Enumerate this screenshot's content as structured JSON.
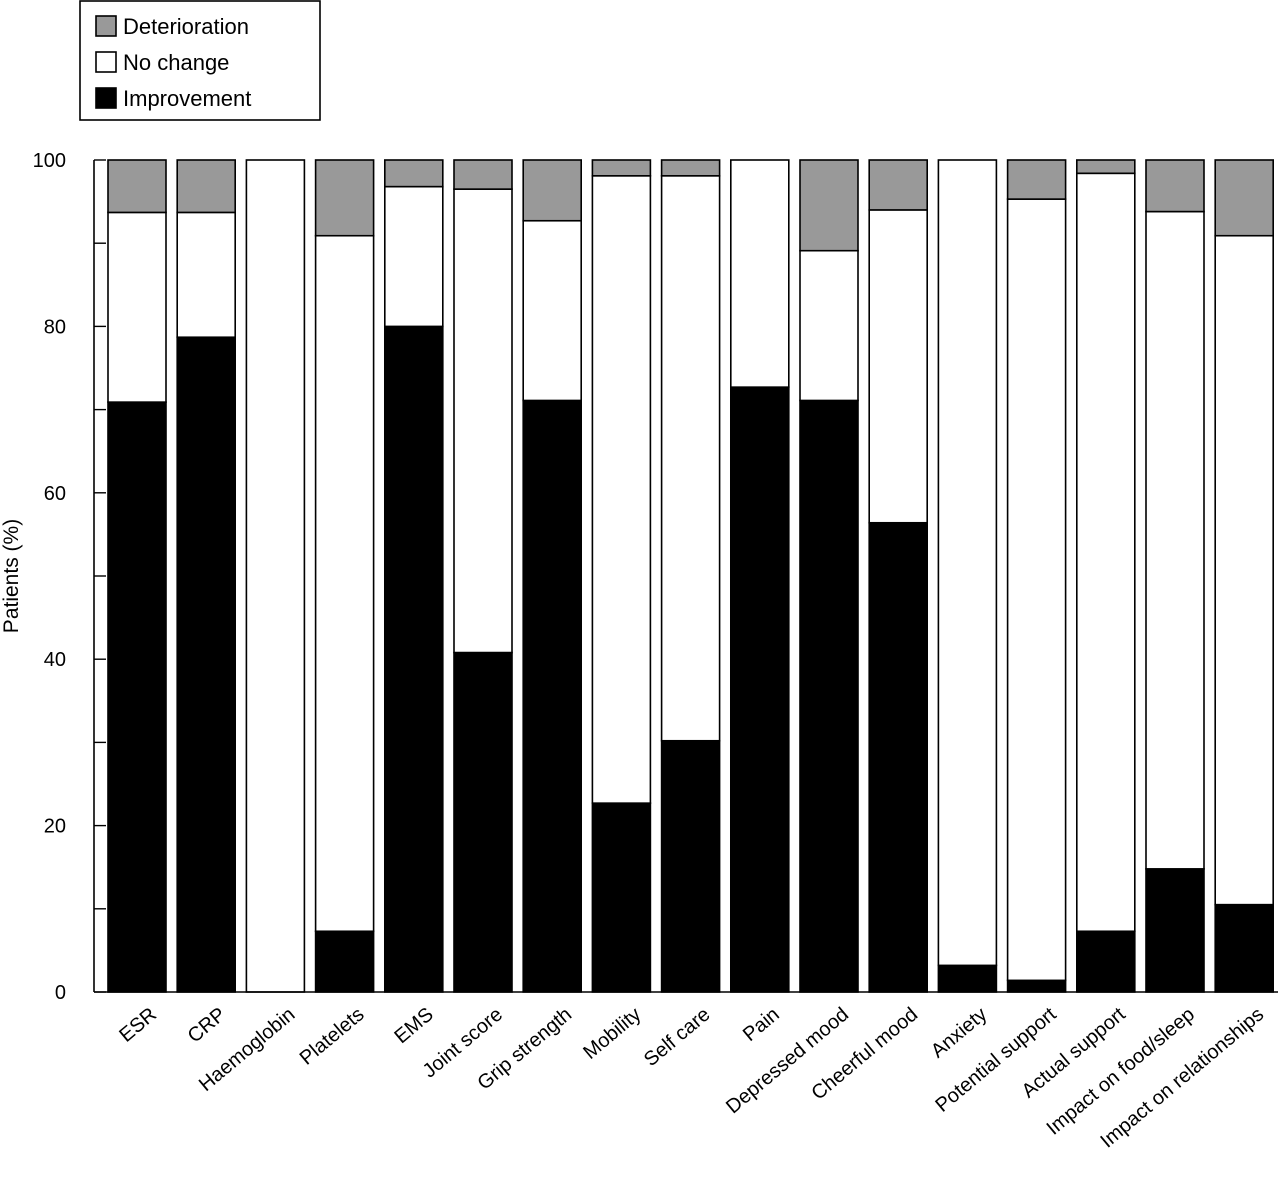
{
  "colors": {
    "deterioration": "#999999",
    "no_change": "#ffffff",
    "improvement": "#000000"
  },
  "chart_data": {
    "type": "bar",
    "stacked": true,
    "title": "",
    "xlabel": "",
    "ylabel": "Patients (%)",
    "ylim": [
      0,
      100
    ],
    "yticks": [
      "0",
      "20",
      "40",
      "60",
      "80",
      "100"
    ],
    "grid": false,
    "legend_position": "top-left",
    "legend": [
      "Deterioration",
      "No change",
      "Improvement"
    ],
    "categories": [
      "ESR",
      "CRP",
      "Haemoglobin",
      "Platelets",
      "EMS",
      "Joint score",
      "Grip strength",
      "Mobility",
      "Self care",
      "Pain",
      "Depressed mood",
      "Cheerful mood",
      "Anxiety",
      "Potential support",
      "Actual support",
      "Impact on food/sleep",
      "Impact on relationships"
    ],
    "series": [
      {
        "name": "Improvement",
        "values": [
          70.9,
          78.7,
          0,
          7.3,
          80.0,
          40.8,
          71.1,
          22.7,
          30.2,
          72.7,
          71.1,
          56.4,
          3.2,
          1.4,
          7.3,
          14.8,
          10.5
        ]
      },
      {
        "name": "No change",
        "values": [
          22.8,
          15.0,
          100,
          83.6,
          16.8,
          55.7,
          21.6,
          75.4,
          67.9,
          27.3,
          18.0,
          37.6,
          96.8,
          93.9,
          91.1,
          79.0,
          80.4
        ]
      },
      {
        "name": "Deterioration",
        "values": [
          6.3,
          6.3,
          0,
          9.1,
          3.2,
          3.5,
          7.3,
          1.9,
          1.9,
          0,
          10.9,
          6.0,
          0,
          4.7,
          1.6,
          6.2,
          9.1
        ]
      }
    ]
  }
}
